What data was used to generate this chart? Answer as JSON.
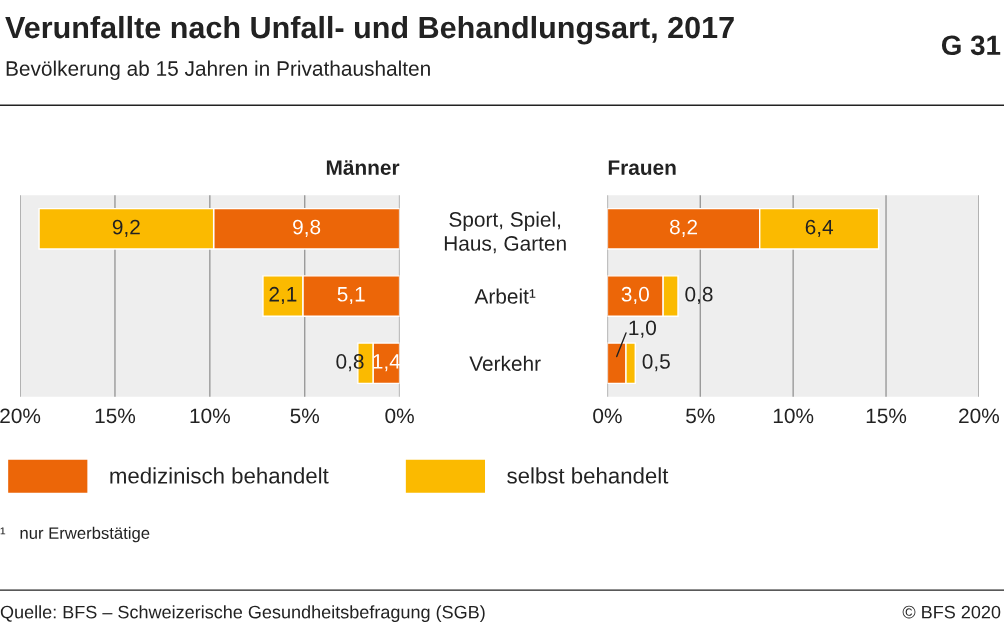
{
  "chart_data": [
    {
      "type": "bar",
      "orientation": "horizontal",
      "stacked": true,
      "title": "Verunfallte nach Unfall- und Behandlungsart, 2017",
      "subtitle": "Bevölkerung ab 15 Jahren in Privathaushalten",
      "xlabel": "Männer",
      "categories": [
        "Sport, Spiel,\nHaus, Garten",
        "Arbeit¹",
        "Verkehr"
      ],
      "series": [
        {
          "name": "medizinisch behandelt",
          "color": "#ec6608",
          "values": [
            9.8,
            5.1,
            1.4
          ],
          "value_labels": [
            "9,8",
            "5,1",
            "1,4"
          ]
        },
        {
          "name": "selbst behandelt",
          "color": "#fbba00",
          "values": [
            9.2,
            2.1,
            0.8
          ],
          "value_labels": [
            "9,2",
            "2,1",
            "0,8"
          ]
        }
      ],
      "xlim": [
        20,
        0
      ],
      "xticks": [
        {
          "value": 20,
          "label": "20%"
        },
        {
          "value": 15,
          "label": "15%"
        },
        {
          "value": 10,
          "label": "10%"
        },
        {
          "value": 5,
          "label": "5%"
        },
        {
          "value": 0,
          "label": "0%"
        }
      ],
      "grid": "x",
      "legend": "bottom",
      "annotations": [
        "G 31",
        "¹   nur Erwerbstätige",
        "Quelle: BFS – Schweizerische Gesundheitsbefragung (SGB)",
        "© BFS 2020"
      ]
    },
    {
      "type": "bar",
      "orientation": "horizontal",
      "stacked": true,
      "xlabel": "Frauen",
      "categories": [
        null,
        null,
        null
      ],
      "series": [
        {
          "color": "#ec6608",
          "values": [
            8.2,
            3.0,
            1.0
          ],
          "value_labels": [
            "8,2",
            "3,0",
            "1,0"
          ]
        },
        {
          "color": "#fbba00",
          "values": [
            6.4,
            0.8,
            0.5
          ],
          "value_labels": [
            "6,4",
            "0,8",
            "0,5"
          ]
        }
      ],
      "xlim": [
        0,
        20
      ],
      "xticks": [
        {
          "value": 0,
          "label": "0%"
        },
        {
          "value": 5,
          "label": "5%"
        },
        {
          "value": 10,
          "label": "10%"
        },
        {
          "value": 15,
          "label": "15%"
        },
        {
          "value": 20,
          "label": "20%"
        }
      ],
      "grid": "x",
      "tick_labels": "x"
    }
  ]
}
